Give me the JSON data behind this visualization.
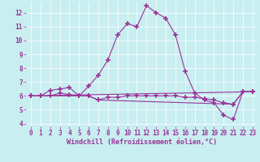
{
  "xlabel": "Windchill (Refroidissement éolien,°C)",
  "bg_color": "#c8eef0",
  "line_color": "#993399",
  "grid_color": "#ffffff",
  "xlim": [
    -0.5,
    23.5
  ],
  "ylim": [
    3.8,
    12.8
  ],
  "yticks": [
    4,
    5,
    6,
    7,
    8,
    9,
    10,
    11,
    12
  ],
  "xticks": [
    0,
    1,
    2,
    3,
    4,
    5,
    6,
    7,
    8,
    9,
    10,
    11,
    12,
    13,
    14,
    15,
    16,
    17,
    18,
    19,
    20,
    21,
    22,
    23
  ],
  "line1_x": [
    0,
    1,
    2,
    3,
    4,
    5,
    6,
    7,
    8,
    9,
    10,
    11,
    12,
    13,
    14,
    15,
    16,
    17,
    18,
    19,
    20,
    21,
    22,
    23
  ],
  "line1_y": [
    6.0,
    6.0,
    6.4,
    6.5,
    6.6,
    6.0,
    6.7,
    7.5,
    8.6,
    10.4,
    11.2,
    11.0,
    12.5,
    12.0,
    11.6,
    10.4,
    7.8,
    6.2,
    5.7,
    5.5,
    4.6,
    4.3,
    6.3,
    6.3
  ],
  "line2_x": [
    0,
    1,
    2,
    3,
    4,
    5,
    6,
    7,
    8,
    9,
    10,
    11,
    12,
    13,
    14,
    15,
    16,
    17,
    18,
    19,
    20,
    21,
    22,
    23
  ],
  "line2_y": [
    6.0,
    6.0,
    6.0,
    6.2,
    6.1,
    6.0,
    6.0,
    5.7,
    5.9,
    5.9,
    6.0,
    6.0,
    6.0,
    6.0,
    6.0,
    6.0,
    5.9,
    5.9,
    5.8,
    5.7,
    5.5,
    5.4,
    6.3,
    6.3
  ],
  "line3_x": [
    0,
    6,
    7,
    21,
    22,
    23
  ],
  "line3_y": [
    6.0,
    6.0,
    5.7,
    5.4,
    6.3,
    6.3
  ],
  "line4_x": [
    0,
    23
  ],
  "line4_y": [
    6.0,
    6.3
  ],
  "font_size_tick": 5.5,
  "font_size_label": 6.0,
  "font_color": "#993399"
}
